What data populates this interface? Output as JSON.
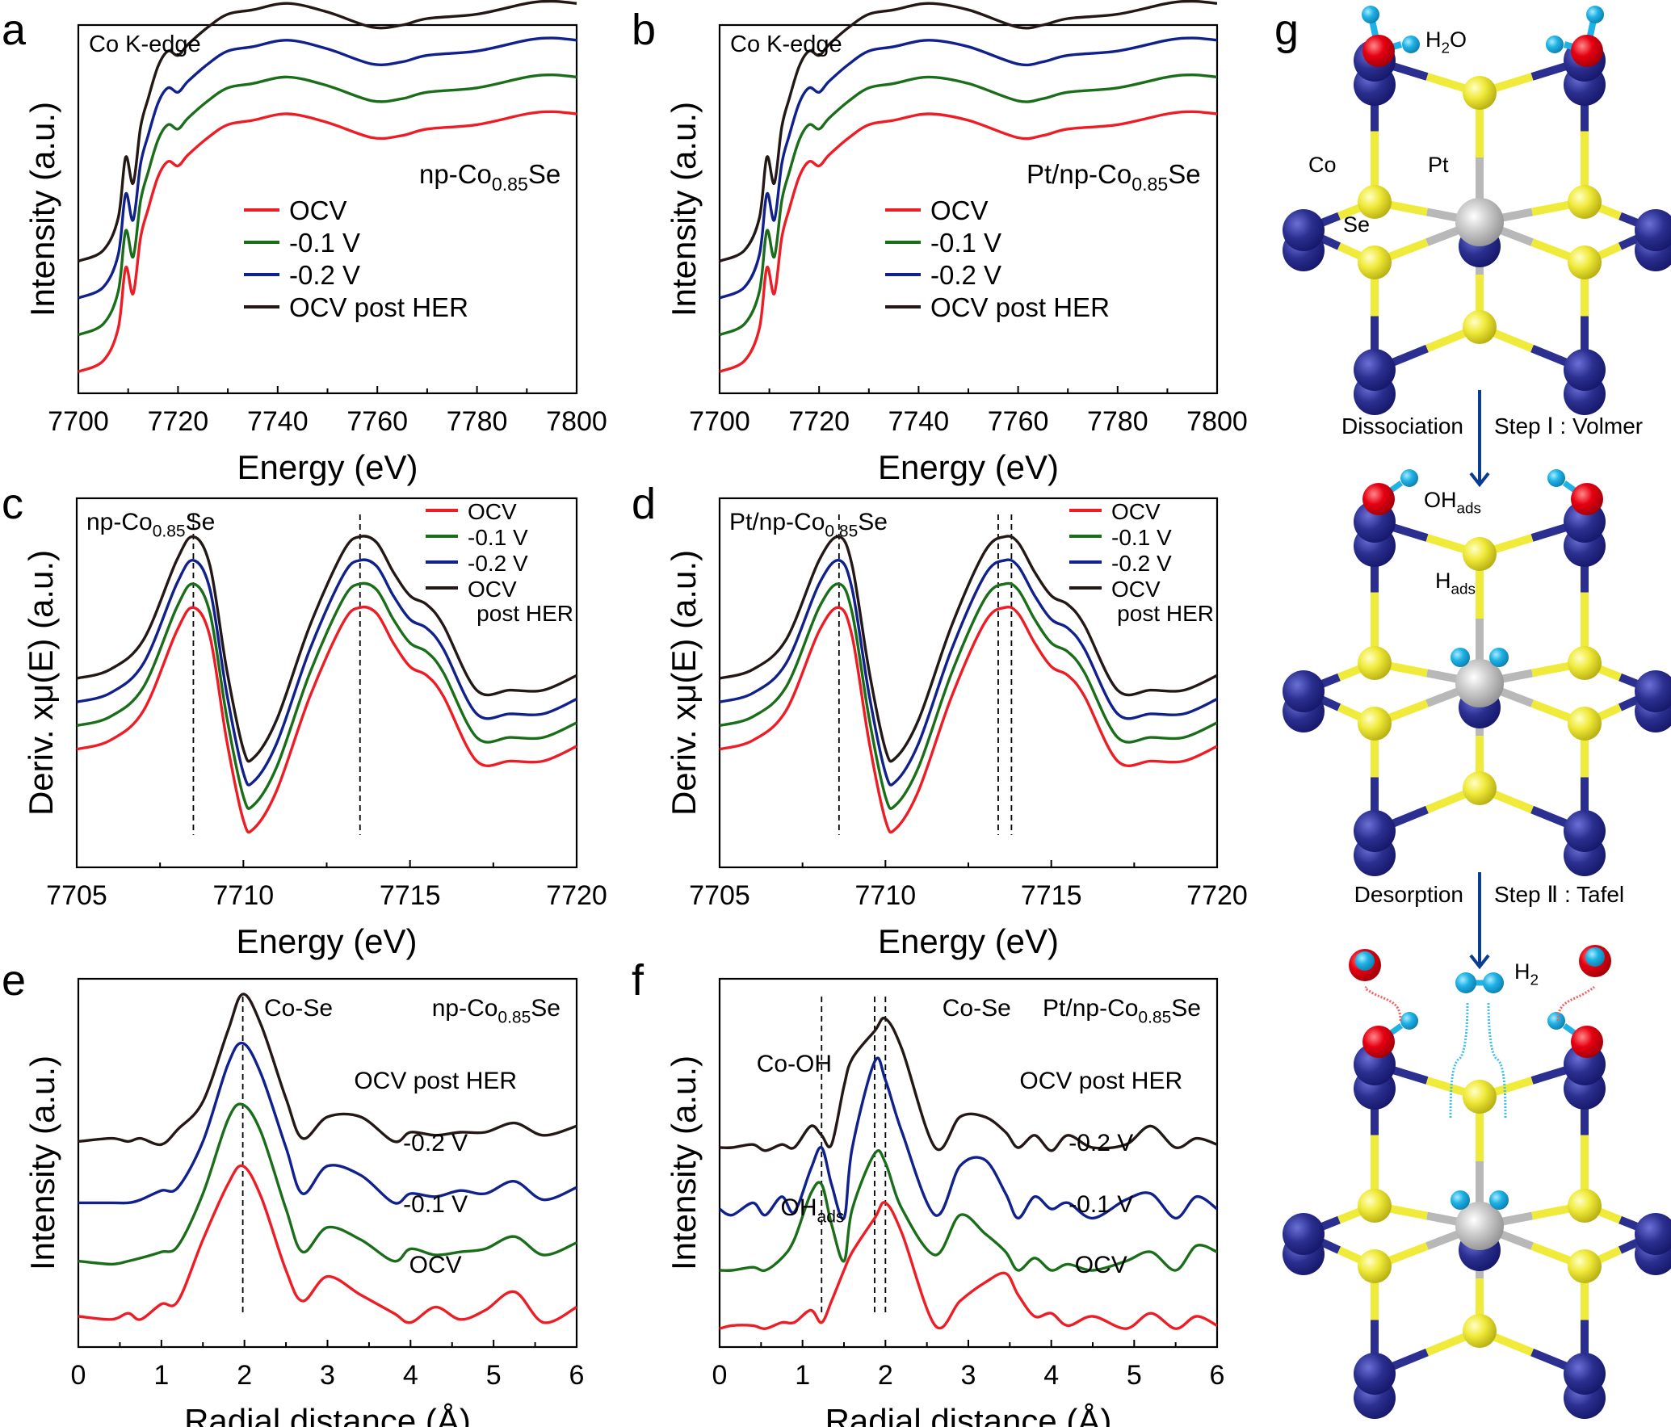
{
  "figure": {
    "panel_letters": [
      "a",
      "b",
      "c",
      "d",
      "e",
      "f",
      "g"
    ]
  },
  "colors": {
    "OCV": "#ee1c24",
    "-0.1 V": "#1a6e1a",
    "-0.2 V": "#10208c",
    "OCV post HER": "#231815",
    "cobalt": "#2b2f8f",
    "selenium": "#f0ea3a",
    "platinum": "#c0c0c0",
    "oxygen": "#e60012",
    "hydrogen": "#1fb2e6",
    "arrow": "#0a3d8f"
  },
  "chart_data": [
    {
      "panel": "a",
      "type": "line",
      "title": "",
      "annotations": [
        "Co K-edge",
        "np-Co0.85Se"
      ],
      "sample_label": {
        "main": "np-Co",
        "sub": "0.85",
        "end": "Se"
      },
      "xlabel": "Energy (eV)",
      "ylabel": "Intensity (a.u.)",
      "xlim": [
        7700,
        7800
      ],
      "xticks": [
        7700,
        7720,
        7740,
        7760,
        7780,
        7800
      ],
      "ylim": [
        0,
        1.7
      ],
      "legend": [
        "OCV",
        "-0.1 V",
        "-0.2 V",
        "OCV post HER"
      ],
      "legend_position": "center-right",
      "x": [
        7700,
        7705,
        7708,
        7709.5,
        7711,
        7712.5,
        7714,
        7716,
        7718,
        7720,
        7722,
        7726,
        7730,
        7735,
        7742,
        7750,
        7759,
        7765,
        7770,
        7780,
        7790,
        7795,
        7800
      ],
      "base": [
        0.0,
        0.05,
        0.2,
        0.48,
        0.36,
        0.62,
        0.75,
        0.9,
        0.97,
        0.95,
        1.0,
        1.08,
        1.14,
        1.16,
        1.19,
        1.15,
        1.08,
        1.09,
        1.12,
        1.14,
        1.19,
        1.2,
        1.19
      ],
      "series": [
        {
          "name": "OCV",
          "offset": 0.0
        },
        {
          "name": "-0.1 V",
          "offset": 0.17
        },
        {
          "name": "-0.2 V",
          "offset": 0.34
        },
        {
          "name": "OCV post HER",
          "offset": 0.51
        }
      ]
    },
    {
      "panel": "b",
      "type": "line",
      "title": "",
      "annotations": [
        "Co K-edge",
        "Pt/np-Co0.85Se"
      ],
      "sample_label": {
        "main": "Pt/np-Co",
        "sub": "0.85",
        "end": "Se"
      },
      "xlabel": "Energy (eV)",
      "ylabel": "Intensity (a.u.)",
      "xlim": [
        7700,
        7800
      ],
      "xticks": [
        7700,
        7720,
        7740,
        7760,
        7780,
        7800
      ],
      "ylim": [
        0,
        1.7
      ],
      "legend": [
        "OCV",
        "-0.1 V",
        "-0.2 V",
        "OCV post HER"
      ],
      "legend_position": "center-right",
      "x": [
        7700,
        7705,
        7708,
        7709.5,
        7711,
        7712.5,
        7714,
        7716,
        7718,
        7720,
        7722,
        7726,
        7730,
        7735,
        7742,
        7750,
        7760,
        7765,
        7770,
        7780,
        7790,
        7795,
        7800
      ],
      "base": [
        0.0,
        0.05,
        0.2,
        0.48,
        0.36,
        0.62,
        0.75,
        0.9,
        0.97,
        0.95,
        1.0,
        1.08,
        1.14,
        1.16,
        1.19,
        1.16,
        1.08,
        1.09,
        1.12,
        1.14,
        1.19,
        1.2,
        1.19
      ],
      "series": [
        {
          "name": "OCV",
          "offset": 0.0
        },
        {
          "name": "-0.1 V",
          "offset": 0.17
        },
        {
          "name": "-0.2 V",
          "offset": 0.34
        },
        {
          "name": "OCV post HER",
          "offset": 0.51
        }
      ]
    },
    {
      "panel": "c",
      "type": "line",
      "title": "",
      "sample_label": {
        "main": "np-Co",
        "sub": "0.85",
        "end": "Se"
      },
      "xlabel": "Energy (eV)",
      "ylabel": "Deriv. xμ(E) (a.u.)",
      "xlim": [
        7705,
        7720
      ],
      "xticks": [
        7705,
        7710,
        7715,
        7720
      ],
      "ylim": [
        0,
        1.25
      ],
      "legend": [
        "OCV",
        "-0.1 V",
        "-0.2 V",
        "OCV",
        "post HER"
      ],
      "legend_position": "top-right",
      "dashed_lines_x": [
        7708.5,
        7713.5
      ],
      "x": [
        7705,
        7706,
        7707,
        7708,
        7708.5,
        7709,
        7709.5,
        7710,
        7710.3,
        7711,
        7712,
        7713,
        7713.5,
        7714,
        7714.5,
        7715,
        7715.5,
        7716,
        7717,
        7718,
        7719,
        7720
      ],
      "base": [
        0.32,
        0.35,
        0.45,
        0.72,
        0.8,
        0.7,
        0.35,
        0.08,
        0.05,
        0.18,
        0.5,
        0.75,
        0.8,
        0.78,
        0.68,
        0.6,
        0.57,
        0.5,
        0.28,
        0.28,
        0.28,
        0.33
      ],
      "series": [
        {
          "name": "OCV",
          "offset": 0.0
        },
        {
          "name": "-0.1 V",
          "offset": 0.08
        },
        {
          "name": "-0.2 V",
          "offset": 0.16
        },
        {
          "name": "OCV post HER",
          "offset": 0.24
        }
      ]
    },
    {
      "panel": "d",
      "type": "line",
      "title": "",
      "sample_label": {
        "main": "Pt/np-Co",
        "sub": "0.85",
        "end": "Se"
      },
      "xlabel": "Energy (eV)",
      "ylabel": "Deriv. xμ(E) (a.u.)",
      "xlim": [
        7705,
        7720
      ],
      "xticks": [
        7705,
        7710,
        7715,
        7720
      ],
      "ylim": [
        0,
        1.25
      ],
      "legend": [
        "OCV",
        "-0.1 V",
        "-0.2 V",
        "OCV",
        "post HER"
      ],
      "legend_position": "top-right",
      "dashed_lines_x": [
        7708.6,
        7713.4,
        7713.8
      ],
      "x": [
        7705,
        7706,
        7707,
        7708,
        7708.6,
        7709,
        7709.5,
        7710,
        7710.3,
        7711,
        7712,
        7713,
        7713.6,
        7714,
        7714.5,
        7715,
        7715.5,
        7716,
        7717,
        7718,
        7719,
        7720
      ],
      "base": [
        0.32,
        0.35,
        0.45,
        0.72,
        0.8,
        0.7,
        0.35,
        0.08,
        0.05,
        0.18,
        0.5,
        0.75,
        0.8,
        0.78,
        0.68,
        0.6,
        0.57,
        0.5,
        0.28,
        0.28,
        0.28,
        0.33
      ],
      "series": [
        {
          "name": "OCV",
          "offset": 0.0
        },
        {
          "name": "-0.1 V",
          "offset": 0.08
        },
        {
          "name": "-0.2 V",
          "offset": 0.16
        },
        {
          "name": "OCV post HER",
          "offset": 0.24
        }
      ]
    },
    {
      "panel": "e",
      "type": "line",
      "title": "",
      "annotations": [
        "Co-Se"
      ],
      "sample_label": {
        "main": "np-Co",
        "sub": "0.85",
        "end": "Se"
      },
      "xlabel": "Radial distance (Å)",
      "ylabel": "Intensity (a.u.)",
      "xlim": [
        0,
        6
      ],
      "xticks": [
        0,
        1,
        2,
        3,
        4,
        5,
        6
      ],
      "ylim": [
        0,
        1.2
      ],
      "dashed_lines_x": [
        1.98
      ],
      "curve_labels": [
        "OCV post HER",
        "-0.2 V",
        "-0.1 V",
        "OCV"
      ],
      "x": [
        0,
        0.4,
        0.6,
        0.75,
        1.0,
        1.2,
        1.5,
        1.8,
        1.98,
        2.2,
        2.5,
        2.7,
        3.0,
        3.4,
        3.8,
        4.0,
        4.3,
        4.6,
        4.9,
        5.25,
        5.6,
        6.0
      ],
      "series": [
        {
          "name": "OCV",
          "offset": 0.0,
          "y": [
            0.05,
            0.04,
            0.06,
            0.04,
            0.09,
            0.1,
            0.3,
            0.48,
            0.54,
            0.44,
            0.2,
            0.1,
            0.18,
            0.12,
            0.06,
            0.03,
            0.08,
            0.04,
            0.07,
            0.13,
            0.03,
            0.08
          ]
        },
        {
          "name": "-0.1 V",
          "offset": 0.2,
          "y": [
            0.03,
            0.02,
            0.03,
            0.04,
            0.06,
            0.08,
            0.25,
            0.49,
            0.54,
            0.45,
            0.2,
            0.06,
            0.14,
            0.1,
            0.03,
            0.07,
            0.05,
            0.06,
            0.07,
            0.11,
            0.05,
            0.09
          ]
        },
        {
          "name": "-0.2 V",
          "offset": 0.4,
          "y": [
            0.02,
            0.02,
            0.02,
            0.03,
            0.06,
            0.07,
            0.22,
            0.47,
            0.54,
            0.44,
            0.2,
            0.05,
            0.14,
            0.11,
            0.02,
            0.05,
            0.04,
            0.06,
            0.05,
            0.09,
            0.03,
            0.07
          ]
        },
        {
          "name": "OCV post HER",
          "offset": 0.6,
          "y": [
            0.02,
            0.03,
            0.02,
            0.03,
            0.01,
            0.06,
            0.15,
            0.38,
            0.5,
            0.4,
            0.16,
            0.03,
            0.1,
            0.1,
            0.02,
            0.05,
            0.04,
            0.05,
            0.05,
            0.08,
            0.04,
            0.07
          ]
        }
      ]
    },
    {
      "panel": "f",
      "type": "line",
      "title": "",
      "annotations": [
        "Co-Se",
        "Co-OH",
        "OHads"
      ],
      "sample_label": {
        "main": "Pt/np-Co",
        "sub": "0.85",
        "end": "Se"
      },
      "xlabel": "Radial distance (Å)",
      "ylabel": "Intensity (a.u.)",
      "xlim": [
        0,
        6
      ],
      "xticks": [
        0,
        1,
        2,
        3,
        4,
        5,
        6
      ],
      "ylim": [
        0,
        1.2
      ],
      "dashed_lines_x": [
        1.23,
        1.87,
        2.0
      ],
      "curve_labels": [
        "OCV post HER",
        "-0.2 V",
        "-0.1 V",
        "OCV"
      ],
      "x": [
        0,
        0.15,
        0.4,
        0.55,
        0.75,
        0.9,
        1.1,
        1.23,
        1.35,
        1.5,
        1.6,
        1.87,
        2.0,
        2.2,
        2.6,
        2.9,
        3.2,
        3.45,
        3.6,
        3.8,
        4.0,
        4.2,
        4.5,
        4.9,
        5.2,
        5.5,
        5.75,
        6.0
      ],
      "series": [
        {
          "name": "OCV",
          "offset": 0.0,
          "y": [
            0.01,
            0.02,
            0.02,
            0.01,
            0.03,
            0.03,
            0.07,
            0.03,
            0.1,
            0.2,
            0.26,
            0.37,
            0.42,
            0.32,
            0.02,
            0.1,
            0.16,
            0.19,
            0.12,
            0.05,
            0.06,
            0.02,
            0.05,
            0.01,
            0.06,
            0.01,
            0.05,
            0.02
          ]
        },
        {
          "name": "-0.1 V",
          "offset": 0.2,
          "y": [
            0.0,
            0.0,
            0.01,
            0.0,
            0.04,
            0.1,
            0.25,
            0.28,
            0.15,
            0.03,
            0.2,
            0.38,
            0.35,
            0.2,
            0.05,
            0.18,
            0.12,
            0.06,
            0.0,
            0.04,
            0.0,
            0.02,
            0.0,
            0.03,
            0.06,
            0.0,
            0.08,
            0.06
          ]
        },
        {
          "name": "-0.2 V",
          "offset": 0.4,
          "y": [
            0.0,
            -0.02,
            0.02,
            -0.02,
            0.04,
            -0.01,
            0.13,
            0.2,
            0.08,
            -0.03,
            0.2,
            0.48,
            0.42,
            0.25,
            -0.02,
            0.14,
            0.16,
            0.05,
            -0.03,
            0.04,
            0.0,
            0.02,
            -0.03,
            0.03,
            0.05,
            -0.03,
            0.04,
            0.0
          ]
        },
        {
          "name": "OCV post HER",
          "offset": 0.6,
          "y": [
            0.0,
            0.0,
            0.01,
            -0.01,
            0.01,
            0.0,
            0.07,
            0.04,
            0.01,
            0.2,
            0.29,
            0.38,
            0.42,
            0.32,
            0.0,
            0.1,
            0.1,
            0.05,
            0.0,
            0.04,
            -0.01,
            0.04,
            0.0,
            0.01,
            0.07,
            0.0,
            0.03,
            0.01
          ]
        }
      ]
    }
  ],
  "diagram": {
    "panel": "g",
    "atom_labels": {
      "co": "Co",
      "pt": "Pt",
      "se": "Se"
    },
    "stage1_label": {
      "main": "H",
      "sub": "2",
      "end": "O"
    },
    "stage2_labels": {
      "ohads": {
        "main": "OH",
        "sub": "ads"
      },
      "hads": {
        "main": "H",
        "sub": "ads"
      }
    },
    "stage3_label": {
      "main": "H",
      "sub": "2"
    },
    "step1": {
      "left": "Dissociation",
      "right": "Step Ⅰ : Volmer"
    },
    "step2": {
      "left": "Desorption",
      "right": "Step Ⅱ : Tafel"
    }
  }
}
